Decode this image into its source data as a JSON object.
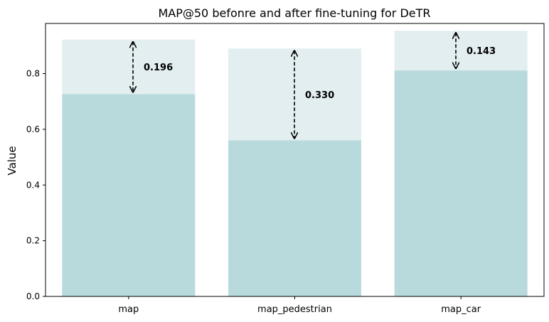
{
  "chart_data": {
    "type": "bar",
    "title": "MAP@50 befonre and after fine-tuning for DeTR",
    "xlabel": "",
    "ylabel": "Value",
    "ylim": [
      0,
      0.98
    ],
    "yticks": [
      "0.0",
      "0.2",
      "0.4",
      "0.6",
      "0.8"
    ],
    "categories": [
      "map",
      "map_pedestrian",
      "map_car"
    ],
    "series": [
      {
        "values": [
          0.726,
          0.56,
          0.811
        ]
      },
      {
        "values": [
          0.922,
          0.89,
          0.954
        ]
      }
    ],
    "annotations": [
      "0.196",
      "0.330",
      "0.143"
    ],
    "colors": {
      "before": "#b8dadc",
      "after": "#e3eef0",
      "arrow": "#000000"
    },
    "grid": false,
    "legend": "none"
  }
}
